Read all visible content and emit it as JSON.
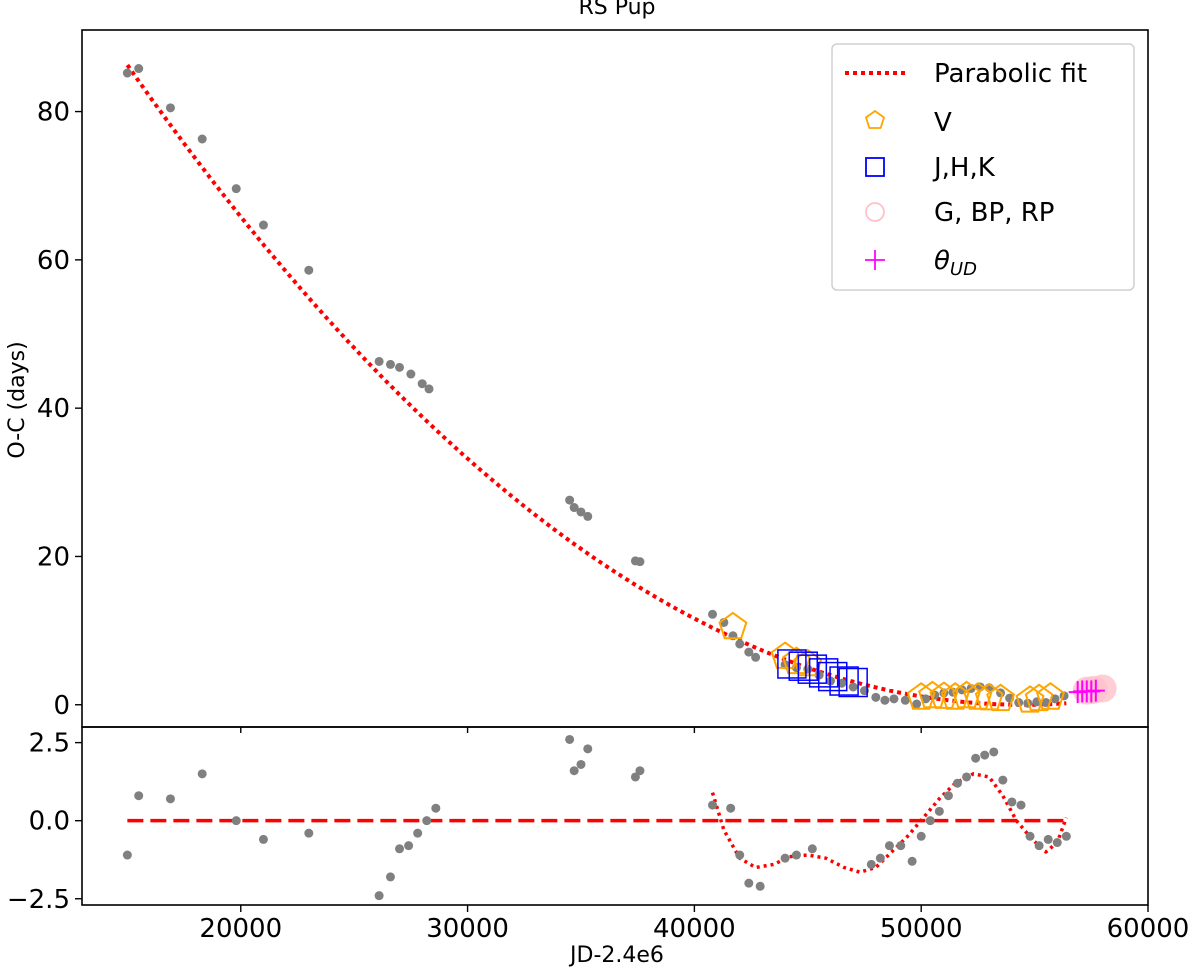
{
  "chart_data": [
    {
      "type": "scatter",
      "title": "RS Pup",
      "xlabel": "",
      "ylabel": "O-C (days)",
      "xlim": [
        13000,
        60000
      ],
      "ylim": [
        -3,
        91
      ],
      "yticks": [
        0,
        20,
        40,
        60,
        80
      ],
      "legend": {
        "position": "top-right",
        "entries": [
          {
            "label": "Parabolic fit",
            "marker": "dotted-line",
            "color": "#ff0000"
          },
          {
            "label": "V",
            "marker": "pentagon",
            "color": "#ffa500"
          },
          {
            "label": "J,H,K",
            "marker": "square",
            "color": "#0000ff"
          },
          {
            "label": "G, BP, RP",
            "marker": "circle",
            "color": "#ffc0cb"
          },
          {
            "label": "θ",
            "label_sub": "UD",
            "marker": "plus",
            "color": "#ff00ff"
          }
        ]
      },
      "fit": {
        "name": "Parabolic fit",
        "type": "parabola",
        "vertex_x": 54500,
        "vertex_y": 0,
        "coef": 5.53e-08,
        "x_range": [
          15000,
          56400
        ],
        "color": "#ff0000"
      },
      "series": [
        {
          "name": "O-C",
          "color": "#808080",
          "points": [
            [
              15000,
              85.2
            ],
            [
              15500,
              85.8
            ],
            [
              16900,
              80.5
            ],
            [
              18300,
              76.3
            ],
            [
              19800,
              69.6
            ],
            [
              21000,
              64.7
            ],
            [
              23000,
              58.6
            ],
            [
              26100,
              46.3
            ],
            [
              26600,
              45.9
            ],
            [
              27000,
              45.5
            ],
            [
              27500,
              44.6
            ],
            [
              28000,
              43.3
            ],
            [
              28300,
              42.6
            ],
            [
              34500,
              27.6
            ],
            [
              34700,
              26.6
            ],
            [
              35000,
              26.0
            ],
            [
              35300,
              25.4
            ],
            [
              37400,
              19.4
            ],
            [
              37600,
              19.3
            ],
            [
              40800,
              12.2
            ],
            [
              41300,
              11.1
            ],
            [
              41700,
              9.3
            ],
            [
              42000,
              8.2
            ],
            [
              42400,
              7.1
            ],
            [
              42700,
              6.4
            ],
            [
              44000,
              5.4
            ],
            [
              44500,
              5.0
            ],
            [
              45000,
              4.8
            ],
            [
              45500,
              4.0
            ],
            [
              46000,
              3.2
            ],
            [
              46500,
              2.9
            ],
            [
              47000,
              2.4
            ],
            [
              47500,
              1.9
            ],
            [
              48000,
              1.0
            ],
            [
              48400,
              0.6
            ],
            [
              48800,
              0.8
            ],
            [
              49300,
              0.6
            ],
            [
              49800,
              0.1
            ],
            [
              50200,
              0.8
            ],
            [
              50600,
              1.3
            ],
            [
              51000,
              1.6
            ],
            [
              51400,
              1.7
            ],
            [
              51800,
              2.0
            ],
            [
              52200,
              2.2
            ],
            [
              52600,
              2.4
            ],
            [
              53000,
              2.3
            ],
            [
              53500,
              1.6
            ],
            [
              53900,
              0.9
            ],
            [
              54300,
              0.3
            ],
            [
              54700,
              0.2
            ],
            [
              55100,
              0.4
            ],
            [
              55500,
              0.3
            ],
            [
              55900,
              0.8
            ],
            [
              56300,
              1.2
            ]
          ]
        },
        {
          "name": "V",
          "color": "#ffa500",
          "points": [
            [
              41700,
              10.5
            ],
            [
              44000,
              6.5
            ],
            [
              44500,
              5.8
            ],
            [
              45000,
              5.5
            ],
            [
              50000,
              1.0
            ],
            [
              50500,
              1.2
            ],
            [
              51000,
              1.1
            ],
            [
              51500,
              1.0
            ],
            [
              52000,
              1.2
            ],
            [
              52500,
              1.0
            ],
            [
              53000,
              0.9
            ],
            [
              53500,
              0.8
            ],
            [
              54800,
              0.6
            ],
            [
              55200,
              0.8
            ],
            [
              55700,
              1.0
            ]
          ]
        },
        {
          "name": "J,H,K",
          "color": "#0000ff",
          "points": [
            [
              44300,
              5.5
            ],
            [
              44800,
              5.2
            ],
            [
              45200,
              4.8
            ],
            [
              45700,
              4.3
            ],
            [
              46100,
              3.8
            ],
            [
              46600,
              3.2
            ],
            [
              47000,
              3.0
            ]
          ]
        },
        {
          "name": "G, BP, RP",
          "color": "#ffc0cb",
          "points": [
            [
              57300,
              1.9
            ],
            [
              57600,
              2.0
            ],
            [
              58000,
              2.2
            ]
          ]
        },
        {
          "name": "θUD",
          "color": "#ff00ff",
          "points": [
            [
              56900,
              1.7
            ],
            [
              57100,
              1.8
            ],
            [
              57300,
              1.8
            ],
            [
              57500,
              1.8
            ],
            [
              57700,
              1.9
            ]
          ]
        }
      ]
    },
    {
      "type": "scatter",
      "title": "",
      "xlabel": "JD-2.4e6",
      "ylabel": "",
      "xlim": [
        13000,
        60000
      ],
      "ylim": [
        -2.7,
        3.0
      ],
      "xticks": [
        20000,
        30000,
        40000,
        50000,
        60000
      ],
      "yticks": [
        2.5,
        0.0,
        -2.5
      ],
      "ytick_labels": [
        "2.5",
        "0.0",
        "−2.5"
      ],
      "zero_line": {
        "y": 0,
        "x_range": [
          15000,
          56400
        ],
        "color": "#ff0000",
        "style": "dashed"
      },
      "residual_fit": {
        "color": "#ff0000",
        "style": "dotted",
        "points": [
          [
            40800,
            0.9
          ],
          [
            41300,
            -0.3
          ],
          [
            42000,
            -1.2
          ],
          [
            42700,
            -1.5
          ],
          [
            43500,
            -1.4
          ],
          [
            44200,
            -1.15
          ],
          [
            45000,
            -1.1
          ],
          [
            45800,
            -1.2
          ],
          [
            46600,
            -1.5
          ],
          [
            47300,
            -1.65
          ],
          [
            48000,
            -1.5
          ],
          [
            48700,
            -1.0
          ],
          [
            49400,
            -0.5
          ],
          [
            50100,
            0.1
          ],
          [
            50800,
            0.7
          ],
          [
            51500,
            1.2
          ],
          [
            52300,
            1.5
          ],
          [
            53000,
            1.4
          ],
          [
            53600,
            0.8
          ],
          [
            54200,
            0.0
          ],
          [
            54900,
            -0.6
          ],
          [
            55500,
            -1.0
          ],
          [
            56000,
            -0.7
          ],
          [
            56400,
            0.1
          ]
        ]
      },
      "series": [
        {
          "name": "residuals",
          "color": "#808080",
          "points": [
            [
              15000,
              -1.1
            ],
            [
              15500,
              0.8
            ],
            [
              16900,
              0.7
            ],
            [
              18300,
              1.5
            ],
            [
              19800,
              0.0
            ],
            [
              21000,
              -0.6
            ],
            [
              23000,
              -0.4
            ],
            [
              26100,
              -2.4
            ],
            [
              26600,
              -1.8
            ],
            [
              27000,
              -0.9
            ],
            [
              27400,
              -0.8
            ],
            [
              27800,
              -0.4
            ],
            [
              28200,
              0.0
            ],
            [
              28600,
              0.4
            ],
            [
              34500,
              2.6
            ],
            [
              34700,
              1.6
            ],
            [
              35000,
              1.8
            ],
            [
              35300,
              2.3
            ],
            [
              37400,
              1.4
            ],
            [
              37600,
              1.6
            ],
            [
              40800,
              0.5
            ],
            [
              41600,
              0.4
            ],
            [
              42000,
              -1.1
            ],
            [
              42400,
              -2.0
            ],
            [
              42900,
              -2.1
            ],
            [
              44000,
              -1.2
            ],
            [
              44500,
              -1.1
            ],
            [
              45200,
              -0.9
            ],
            [
              47800,
              -1.4
            ],
            [
              48200,
              -1.2
            ],
            [
              48600,
              -0.8
            ],
            [
              49100,
              -0.8
            ],
            [
              49600,
              -1.3
            ],
            [
              50000,
              -0.5
            ],
            [
              50400,
              0.0
            ],
            [
              50800,
              0.3
            ],
            [
              51200,
              0.8
            ],
            [
              51600,
              1.2
            ],
            [
              52000,
              1.4
            ],
            [
              52400,
              2.0
            ],
            [
              52800,
              2.1
            ],
            [
              53200,
              2.2
            ],
            [
              53600,
              1.3
            ],
            [
              54000,
              0.6
            ],
            [
              54400,
              0.5
            ],
            [
              54800,
              -0.5
            ],
            [
              55200,
              -0.8
            ],
            [
              55600,
              -0.6
            ],
            [
              56000,
              -0.7
            ],
            [
              56400,
              -0.5
            ]
          ]
        }
      ]
    }
  ]
}
